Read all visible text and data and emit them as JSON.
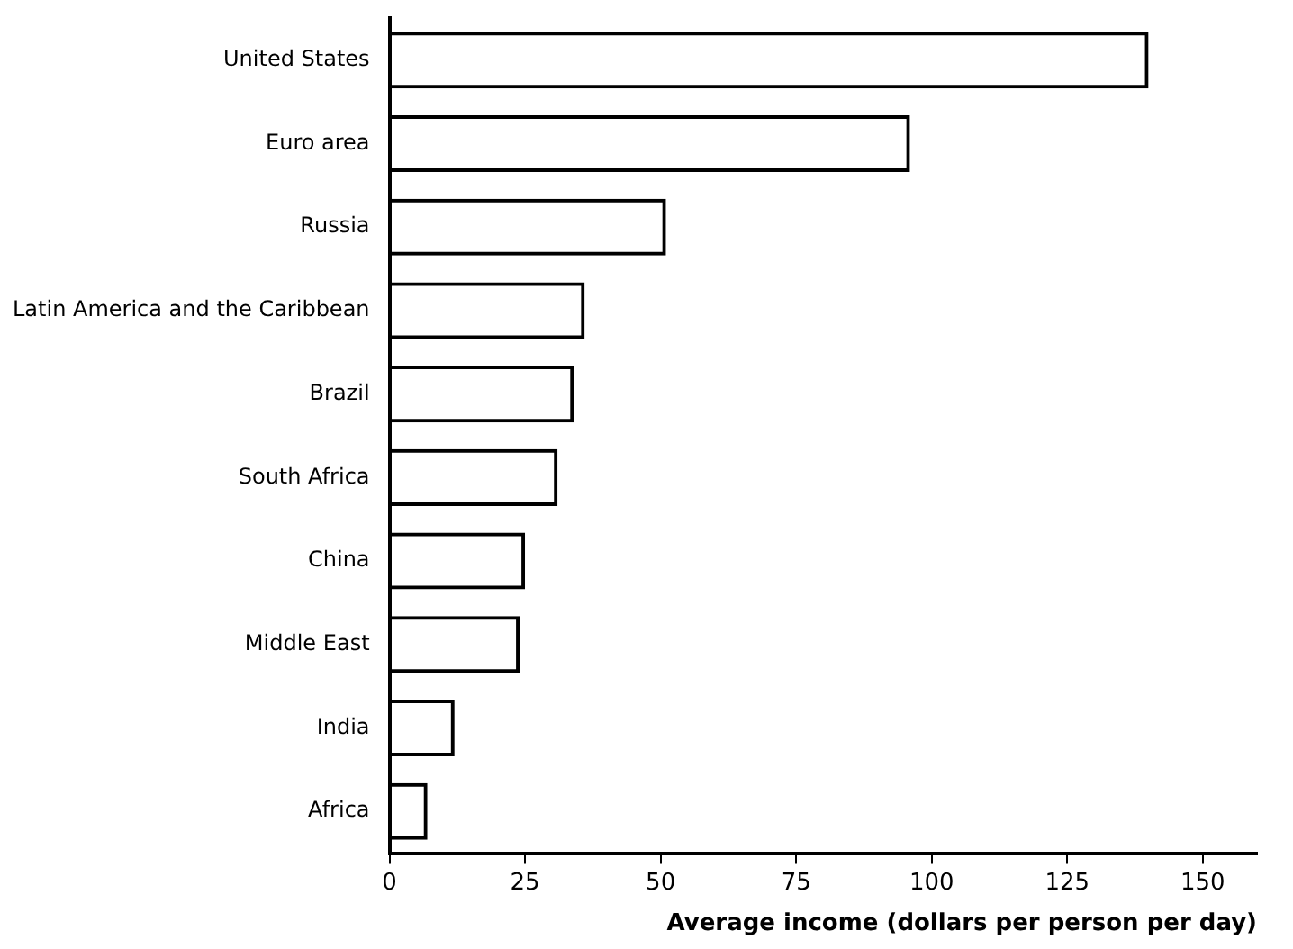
{
  "chart_data": {
    "type": "bar",
    "orientation": "horizontal",
    "xlabel": "Average income (dollars per person per day)",
    "categories": [
      "United States",
      "Euro area",
      "Russia",
      "Latin America and the Caribbean",
      "Brazil",
      "South Africa",
      "China",
      "Middle East",
      "India",
      "Africa"
    ],
    "values": [
      140,
      96,
      51,
      36,
      34,
      31,
      25,
      24,
      12,
      7
    ],
    "color": "#000000",
    "xlim": [
      0,
      160
    ],
    "xticks": [
      0,
      25,
      50,
      75,
      100,
      125,
      150
    ],
    "grid": false,
    "legend": false
  }
}
